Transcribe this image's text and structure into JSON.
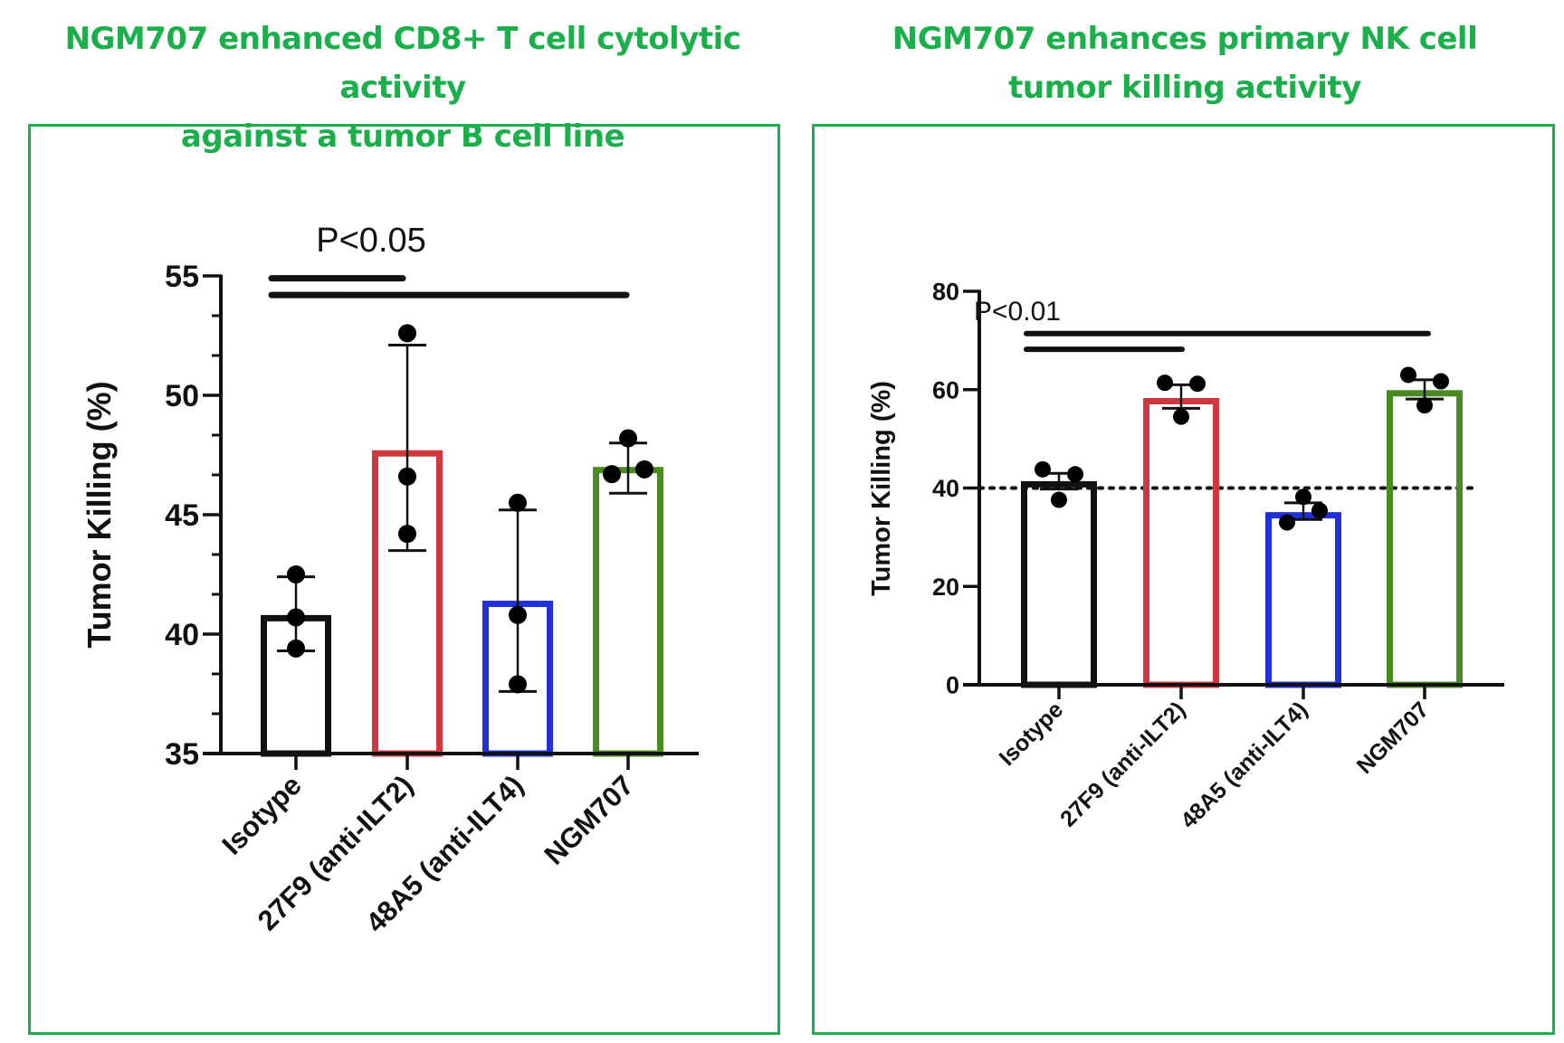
{
  "titles": {
    "left": [
      "NGM707 enhanced CD8+ T cell cytolytic activity",
      "against a tumor B cell line"
    ],
    "right": [
      "NGM707 enhances primary NK cell",
      "tumor killing activity"
    ]
  },
  "colors": {
    "title_green": "#1aaf4b",
    "frame_green": "#1aaf4b",
    "isotype": "#111111",
    "27F9": "#d0383f",
    "48A5": "#2230d8",
    "NGM707": "#4a8a22",
    "points": "#000000"
  },
  "chart_data": [
    {
      "type": "bar",
      "title": "NGM707 enhanced CD8+ T cell cytolytic activity against a tumor B cell line",
      "xlabel": "",
      "ylabel": "Tumor Killing (%)",
      "ylim": [
        35,
        55
      ],
      "yticks": [
        35,
        40,
        45,
        50,
        55
      ],
      "ytick_labels": [
        "35",
        "40",
        "45",
        "50",
        "55"
      ],
      "minor_ticks_per_interval": 2,
      "categories": [
        "Isotype",
        "27F9 (anti-ILT2)",
        "48A5 (anti-ILT4)",
        "NGM707"
      ],
      "values": [
        40.8,
        47.7,
        41.4,
        47.0
      ],
      "points": [
        [
          42.5,
          40.7,
          39.4
        ],
        [
          52.6,
          46.6,
          44.2
        ],
        [
          45.5,
          40.8,
          37.9
        ],
        [
          48.2,
          46.7,
          46.9
        ]
      ],
      "point_offsets": [
        [
          0,
          0,
          0
        ],
        [
          0,
          0,
          0
        ],
        [
          0,
          0,
          0
        ],
        [
          0,
          -1,
          1
        ]
      ],
      "error_bars": [
        [
          39.3,
          42.4
        ],
        [
          43.5,
          52.1
        ],
        [
          37.6,
          45.2
        ],
        [
          45.9,
          48.0
        ]
      ],
      "significance": {
        "label": "P<0.05",
        "brackets": [
          {
            "from": 0,
            "to": 1,
            "y": 54.9
          },
          {
            "from": 0,
            "to": 3,
            "y": 54.2
          }
        ]
      },
      "reference_line": null,
      "grid": false,
      "legend": "none"
    },
    {
      "type": "bar",
      "title": "NGM707 enhances primary NK cell tumor killing activity",
      "xlabel": "",
      "ylabel": "Tumor Killing (%)",
      "ylim": [
        0,
        80
      ],
      "yticks": [
        0,
        20,
        40,
        60,
        80
      ],
      "ytick_labels": [
        "0",
        "20",
        "40",
        "60",
        "80"
      ],
      "minor_ticks_per_interval": 0,
      "categories": [
        "Isotype",
        "27F9 (anti-ILT2)",
        "48A5 (anti-ILT4)",
        "NGM707"
      ],
      "values": [
        41.4,
        58.3,
        35.1,
        59.9
      ],
      "points": [
        [
          43.8,
          42.8,
          37.6
        ],
        [
          61.4,
          61.2,
          54.5
        ],
        [
          38.2,
          35.4,
          33.0
        ],
        [
          63.0,
          61.7,
          56.8
        ]
      ],
      "point_offsets": [
        [
          -1,
          1,
          0
        ],
        [
          -1,
          1,
          0
        ],
        [
          0,
          1,
          -1
        ],
        [
          -1,
          1,
          0
        ]
      ],
      "error_bars": [
        [
          39.8,
          43.0
        ],
        [
          56.2,
          61.0
        ],
        [
          33.6,
          37.0
        ],
        [
          58.1,
          62.0
        ]
      ],
      "significance": {
        "label": "P<0.01",
        "brackets": [
          {
            "from": 0,
            "to": 3,
            "y": 71.4
          },
          {
            "from": 0,
            "to": 1,
            "y": 68.2
          }
        ]
      },
      "reference_line": {
        "y": 40,
        "style": "dotted"
      },
      "grid": false,
      "legend": "none"
    }
  ]
}
